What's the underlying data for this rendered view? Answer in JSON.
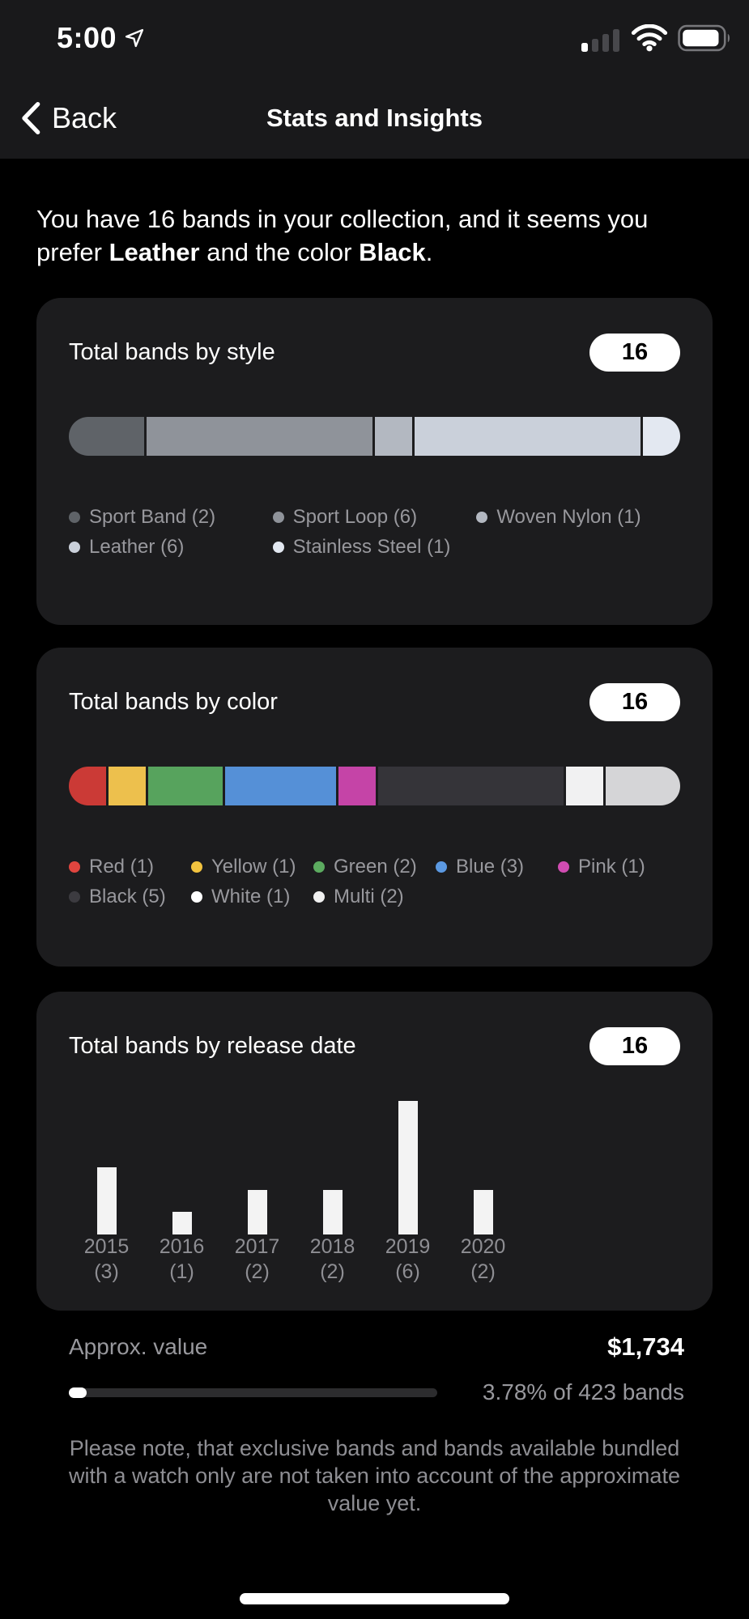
{
  "status_bar": {
    "time": "5:00"
  },
  "nav": {
    "back_label": "Back",
    "title": "Stats and Insights"
  },
  "intro": {
    "part1": "You have 16 bands in your collection, and it seems you prefer ",
    "bold1": "Leather",
    "part2": " and the color ",
    "bold2": "Black",
    "part3": "."
  },
  "chart_data": [
    {
      "type": "stacked-bar",
      "title": "Total bands by style",
      "total": "16",
      "legend_columns": 3,
      "legend_position": "below",
      "segments": [
        {
          "label": "Sport Band",
          "count": 2,
          "color": "#5f6368"
        },
        {
          "label": "Sport Loop",
          "count": 6,
          "color": "#8f939a"
        },
        {
          "label": "Woven Nylon",
          "count": 1,
          "color": "#b3b8c1"
        },
        {
          "label": "Leather",
          "count": 6,
          "color": "#cad0da"
        },
        {
          "label": "Stainless Steel",
          "count": 1,
          "color": "#e3e8f1"
        }
      ]
    },
    {
      "type": "stacked-bar",
      "title": "Total bands by color",
      "total": "16",
      "legend_columns": 5,
      "legend_position": "below",
      "segments": [
        {
          "label": "Red",
          "count": 1,
          "color": "#cb3a36",
          "dot": "#e0453f"
        },
        {
          "label": "Yellow",
          "count": 1,
          "color": "#edc04d",
          "dot": "#f2c33f"
        },
        {
          "label": "Green",
          "count": 2,
          "color": "#57a35d",
          "dot": "#5cab60"
        },
        {
          "label": "Blue",
          "count": 3,
          "color": "#5590d7",
          "dot": "#5b99e2"
        },
        {
          "label": "Pink",
          "count": 1,
          "color": "#c544a7",
          "dot": "#d04cb2"
        },
        {
          "label": "Black",
          "count": 5,
          "color": "#353439",
          "dot": "#3c3b40"
        },
        {
          "label": "White",
          "count": 1,
          "color": "#f1f1f2",
          "dot": "#ffffff"
        },
        {
          "label": "Multi",
          "count": 2,
          "color": "#d5d5d7",
          "dot": "#f0f0f0"
        }
      ]
    },
    {
      "type": "bar",
      "title": "Total bands by release date",
      "total": "16",
      "categories": [
        "2015",
        "2016",
        "2017",
        "2018",
        "2019",
        "2020"
      ],
      "values": [
        3,
        1,
        2,
        2,
        6,
        2
      ],
      "bar_color": "#f3f3f3",
      "ylim": [
        0,
        6
      ],
      "grid": false
    }
  ],
  "value_section": {
    "label": "Approx. value",
    "value": "$1,734",
    "progress_text": "3.78% of 423 bands",
    "progress_percent": 3.78
  },
  "note": "Please note, that exclusive bands and bands available bundled with a watch only are not taken into account of the approximate value yet."
}
